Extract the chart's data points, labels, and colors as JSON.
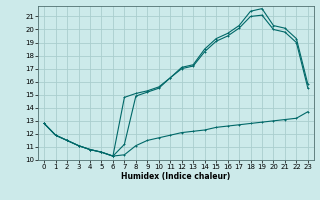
{
  "xlabel": "Humidex (Indice chaleur)",
  "bg_color": "#cceaea",
  "grid_color": "#aacece",
  "line_color": "#006868",
  "xlim": [
    -0.5,
    23.5
  ],
  "ylim": [
    10,
    21.8
  ],
  "yticks": [
    10,
    11,
    12,
    13,
    14,
    15,
    16,
    17,
    18,
    19,
    20,
    21
  ],
  "xticks": [
    0,
    1,
    2,
    3,
    4,
    5,
    6,
    7,
    8,
    9,
    10,
    11,
    12,
    13,
    14,
    15,
    16,
    17,
    18,
    19,
    20,
    21,
    22,
    23
  ],
  "line1_x": [
    0,
    1,
    2,
    3,
    4,
    5,
    6,
    7,
    8,
    9,
    10,
    11,
    12,
    13,
    14,
    15,
    16,
    17,
    18,
    19,
    20,
    21,
    22,
    23
  ],
  "line1_y": [
    12.8,
    11.9,
    11.5,
    11.1,
    10.8,
    10.6,
    10.3,
    11.2,
    14.9,
    15.2,
    15.5,
    16.3,
    17.1,
    17.3,
    18.5,
    19.3,
    19.7,
    20.3,
    21.4,
    21.6,
    20.3,
    20.1,
    19.3,
    15.8
  ],
  "line2_x": [
    0,
    1,
    2,
    3,
    4,
    5,
    6,
    7,
    8,
    9,
    10,
    11,
    12,
    13,
    14,
    15,
    16,
    17,
    18,
    19,
    20,
    21,
    22,
    23
  ],
  "line2_y": [
    12.8,
    11.9,
    11.5,
    11.1,
    10.8,
    10.6,
    10.3,
    14.8,
    15.1,
    15.3,
    15.6,
    16.3,
    17.0,
    17.2,
    18.3,
    19.1,
    19.5,
    20.1,
    21.0,
    21.1,
    20.0,
    19.8,
    19.0,
    15.5
  ],
  "line3_x": [
    0,
    1,
    2,
    3,
    4,
    5,
    6,
    7,
    8,
    9,
    10,
    11,
    12,
    13,
    14,
    15,
    16,
    17,
    18,
    19,
    20,
    21,
    22,
    23
  ],
  "line3_y": [
    12.8,
    11.9,
    11.5,
    11.1,
    10.8,
    10.6,
    10.3,
    10.4,
    11.1,
    11.5,
    11.7,
    11.9,
    12.1,
    12.2,
    12.3,
    12.5,
    12.6,
    12.7,
    12.8,
    12.9,
    13.0,
    13.1,
    13.2,
    13.7
  ]
}
